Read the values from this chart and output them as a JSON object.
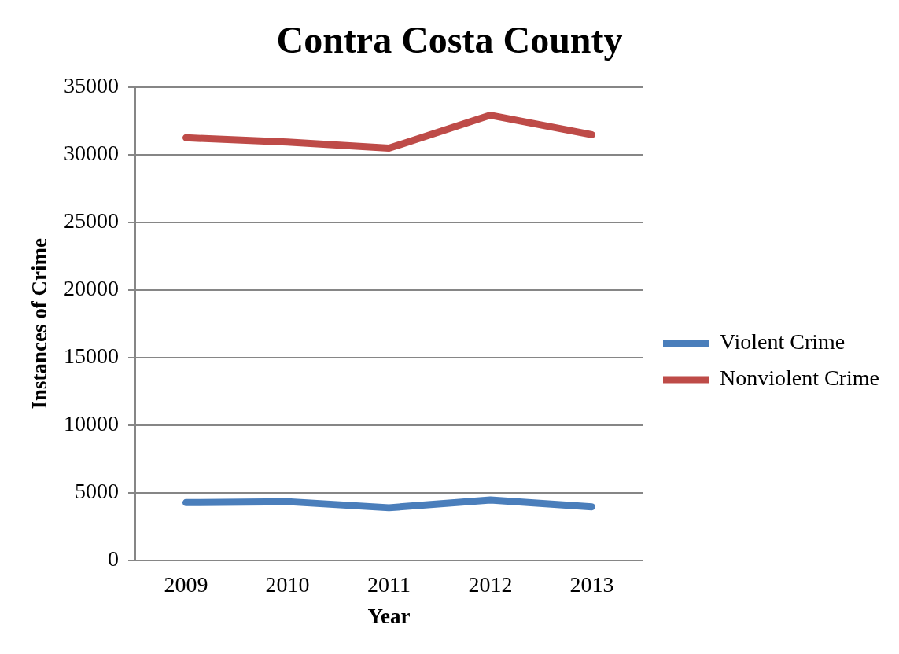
{
  "chart_data": {
    "type": "line",
    "title": "Contra Costa County",
    "xlabel": "Year",
    "ylabel": "Instances of Crime",
    "categories": [
      "2009",
      "2010",
      "2011",
      "2012",
      "2013"
    ],
    "series": [
      {
        "name": "Violent Crime",
        "color": "#4a7ebb",
        "values": [
          4280,
          4350,
          3900,
          4470,
          3970
        ]
      },
      {
        "name": "Nonviolent Crime",
        "color": "#be4b48",
        "values": [
          31240,
          30920,
          30470,
          32910,
          31470
        ]
      }
    ],
    "ylim": [
      0,
      35000
    ],
    "yticks": [
      0,
      5000,
      10000,
      15000,
      20000,
      25000,
      30000,
      35000
    ],
    "grid": "y",
    "legend": "right",
    "marker": "none",
    "line_style": "solid"
  }
}
